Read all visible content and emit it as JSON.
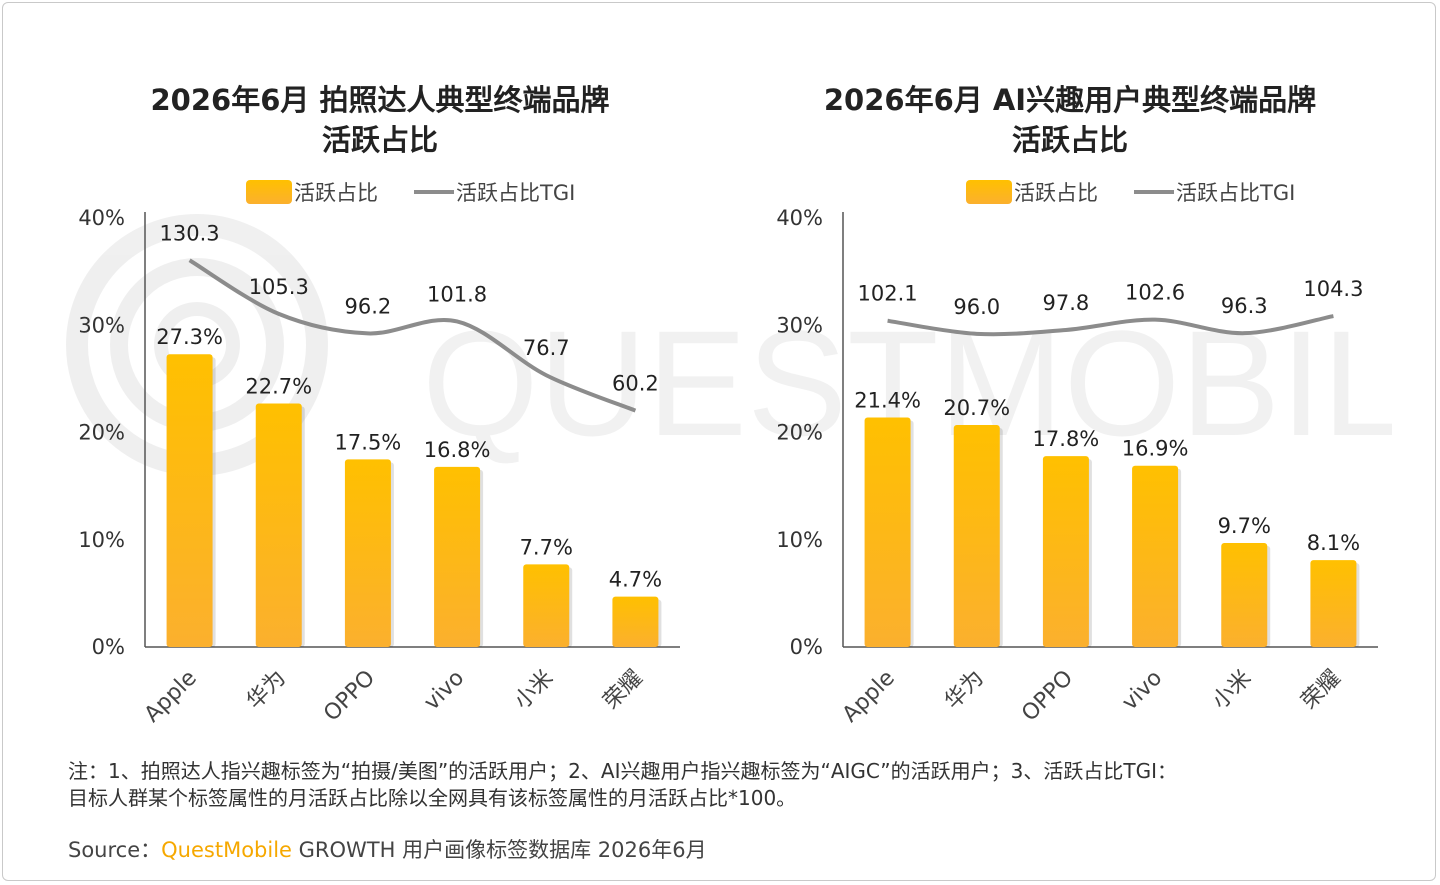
{
  "watermark": "QUESTMOBILE",
  "legend": {
    "bar": "活跃占比",
    "line": "活跃占比TGI"
  },
  "chart_data": [
    {
      "type": "bar",
      "title_line1": "2026年6月 拍照达人典型终端品牌",
      "title_line2": "活跃占比",
      "categories": [
        "Apple",
        "华为",
        "OPPO",
        "vivo",
        "小米",
        "荣耀"
      ],
      "series": [
        {
          "name": "活跃占比",
          "type": "bar",
          "values": [
            27.3,
            22.7,
            17.5,
            16.8,
            7.7,
            4.7
          ],
          "labels": [
            "27.3%",
            "22.7%",
            "17.5%",
            "16.8%",
            "7.7%",
            "4.7%"
          ]
        },
        {
          "name": "活跃占比TGI",
          "type": "line",
          "values": [
            130.3,
            105.3,
            96.2,
            101.8,
            76.7,
            60.2
          ],
          "labels": [
            "130.3",
            "105.3",
            "96.2",
            "101.8",
            "76.7",
            "60.2"
          ]
        }
      ],
      "yticks": [
        "0%",
        "10%",
        "20%",
        "30%",
        "40%"
      ],
      "ylim": [
        0,
        40
      ],
      "line_range": [
        -50,
        150
      ],
      "legend_position": "top-center",
      "grid": false
    },
    {
      "type": "bar",
      "title_line1": "2026年6月 AI兴趣用户典型终端品牌",
      "title_line2": "活跃占比",
      "categories": [
        "Apple",
        "华为",
        "OPPO",
        "vivo",
        "小米",
        "荣耀"
      ],
      "series": [
        {
          "name": "活跃占比",
          "type": "bar",
          "values": [
            21.4,
            20.7,
            17.8,
            16.9,
            9.7,
            8.1
          ],
          "labels": [
            "21.4%",
            "20.7%",
            "17.8%",
            "16.9%",
            "9.7%",
            "8.1%"
          ]
        },
        {
          "name": "活跃占比TGI",
          "type": "line",
          "values": [
            102.1,
            96.0,
            97.8,
            102.6,
            96.3,
            104.3
          ],
          "labels": [
            "102.1",
            "96.0",
            "97.8",
            "102.6",
            "96.3",
            "104.3"
          ]
        }
      ],
      "yticks": [
        "0%",
        "10%",
        "20%",
        "30%",
        "40%"
      ],
      "ylim": [
        0,
        40
      ],
      "line_range": [
        -50,
        150
      ],
      "legend_position": "top-center",
      "grid": false
    }
  ],
  "note": {
    "line1": "注：1、拍照达人指兴趣标签为“拍摄/美图”的活跃用户；2、AI兴趣用户指兴趣标签为“AIGC”的活跃用户；3、活跃占比TGI：",
    "line2": "目标人群某个标签属性的月活跃占比除以全网具有该标签属性的月活跃占比*100。"
  },
  "source": {
    "prefix": "Source：",
    "brand": "QuestMobile",
    "rest": " GROWTH 用户画像标签数据库 2026年6月"
  },
  "colors": {
    "bar_top": "#ffc000",
    "bar_bottom": "#fbb02e",
    "line": "#8c8c8c",
    "brand": "#f6a800"
  }
}
